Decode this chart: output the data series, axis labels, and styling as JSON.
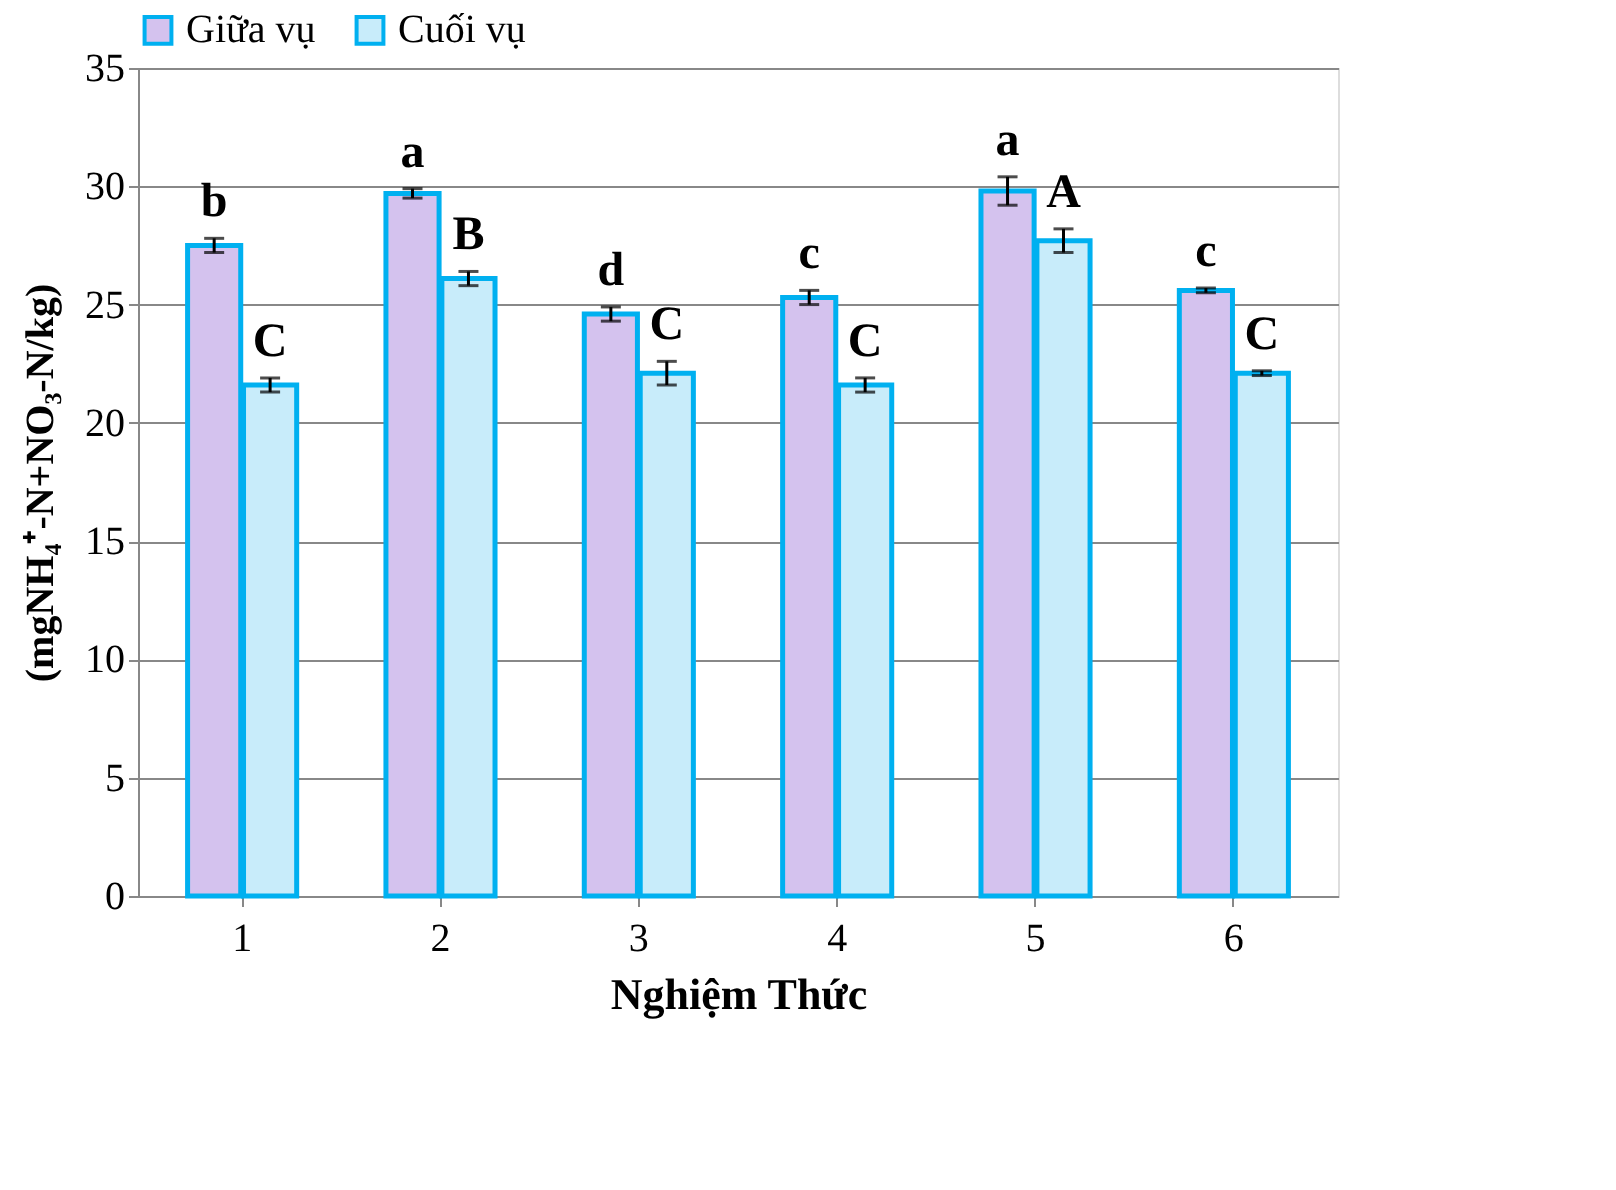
{
  "chart_data": {
    "type": "bar",
    "xlabel": "Nghiệm Thức",
    "ylabel": "(mgNH₄⁺-N+NO₃-N/kg)",
    "categories": [
      "1",
      "2",
      "3",
      "4",
      "5",
      "6"
    ],
    "series": [
      {
        "name": "Giữa vụ",
        "color": "#d4c2ee",
        "values": [
          27.5,
          29.7,
          24.6,
          25.3,
          29.8,
          25.6
        ],
        "errors": [
          0.3,
          0.2,
          0.3,
          0.3,
          0.6,
          0.1
        ]
      },
      {
        "name": "Cuối vụ",
        "color": "#c8ecfa",
        "values": [
          21.6,
          26.1,
          22.1,
          21.6,
          27.7,
          22.1
        ],
        "errors": [
          0.3,
          0.3,
          0.5,
          0.3,
          0.5,
          0.1
        ]
      }
    ],
    "annotations": [
      {
        "text": "b",
        "x": "1",
        "y": 27.5
      },
      {
        "text": "C",
        "x": "1",
        "y": 21.6
      },
      {
        "text": "a",
        "x": "2",
        "y": 29.7
      },
      {
        "text": "B",
        "x": "2",
        "y": 26.1
      },
      {
        "text": "d",
        "x": "3",
        "y": 24.6
      },
      {
        "text": "C",
        "x": "3",
        "y": 22.1
      },
      {
        "text": "c",
        "x": "4",
        "y": 25.3
      },
      {
        "text": "C",
        "x": "4",
        "y": 21.6
      },
      {
        "text": "a",
        "x": "5",
        "y": 29.8
      },
      {
        "text": "A",
        "x": "5",
        "y": 27.7
      },
      {
        "text": "c",
        "x": "6",
        "y": 25.6
      },
      {
        "text": "C",
        "x": "6",
        "y": 22.1
      }
    ],
    "ylim": [
      0,
      35
    ],
    "yticks": [
      0,
      5,
      10,
      15,
      20,
      25,
      30,
      35
    ],
    "grid": "y",
    "legend": "top"
  }
}
